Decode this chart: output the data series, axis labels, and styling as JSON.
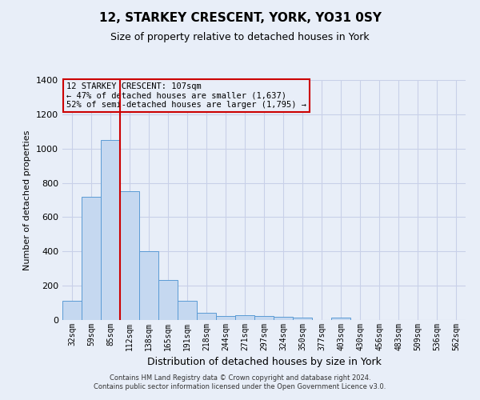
{
  "title": "12, STARKEY CRESCENT, YORK, YO31 0SY",
  "subtitle": "Size of property relative to detached houses in York",
  "xlabel": "Distribution of detached houses by size in York",
  "ylabel": "Number of detached properties",
  "categories": [
    "32sqm",
    "59sqm",
    "85sqm",
    "112sqm",
    "138sqm",
    "165sqm",
    "191sqm",
    "218sqm",
    "244sqm",
    "271sqm",
    "297sqm",
    "324sqm",
    "350sqm",
    "377sqm",
    "403sqm",
    "430sqm",
    "456sqm",
    "483sqm",
    "509sqm",
    "536sqm",
    "562sqm"
  ],
  "values": [
    110,
    720,
    1050,
    750,
    400,
    235,
    113,
    43,
    22,
    28,
    25,
    18,
    12,
    0,
    13,
    0,
    0,
    0,
    0,
    0,
    0
  ],
  "bar_color": "#c5d8f0",
  "bar_edge_color": "#5b9bd5",
  "grid_color": "#c8d0e8",
  "bg_color": "#e8eef8",
  "vline_color": "#cc0000",
  "annotation_text": "12 STARKEY CRESCENT: 107sqm\n← 47% of detached houses are smaller (1,637)\n52% of semi-detached houses are larger (1,795) →",
  "annotation_box_edge": "#cc0000",
  "annotation_bg": "#e8eef8",
  "ylim": [
    0,
    1400
  ],
  "yticks": [
    0,
    200,
    400,
    600,
    800,
    1000,
    1200,
    1400
  ],
  "vline_bar_index": 3,
  "footer1": "Contains HM Land Registry data © Crown copyright and database right 2024.",
  "footer2": "Contains public sector information licensed under the Open Government Licence v3.0."
}
